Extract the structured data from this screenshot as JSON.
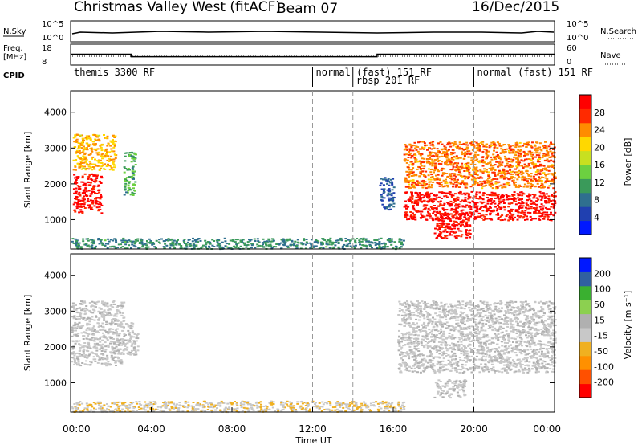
{
  "header": {
    "title": "Christmas Valley West (fitACF)",
    "beam": "Beam 07",
    "date": "16/Dec/2015"
  },
  "top_panels": {
    "nsky_label": "N.Sky",
    "nsearch_label": "N.Search",
    "nsky_ticks": [
      "10^5",
      "10^0"
    ],
    "nsearch_ticks": [
      "10^5",
      "10^0"
    ],
    "freq_label_line1": "Freq.",
    "freq_label_line2": "[MHz]",
    "freq_ticks": [
      "18",
      "8"
    ],
    "nave_label": "Nave",
    "nave_ticks": [
      "60",
      "0"
    ],
    "cpid_label": "CPID",
    "freq_steps": [
      {
        "from_hour": 0,
        "to_hour": 3,
        "mhz": 13.2
      },
      {
        "from_hour": 3,
        "to_hour": 15.2,
        "mhz": 11.9
      },
      {
        "from_hour": 15.2,
        "to_hour": 24,
        "mhz": 13.2
      }
    ],
    "cpid_segments": [
      {
        "start_hour": 0,
        "text": "themis 3300 RF"
      },
      {
        "start_hour": 12,
        "text": "normal (fast) 151 RF"
      },
      {
        "start_hour": 14,
        "text": "rbsp 201 RF"
      },
      {
        "start_hour": 20,
        "text": "normal (fast) 151 RF"
      }
    ]
  },
  "chart_data": [
    {
      "type": "heatmap",
      "title": "Power",
      "xlabel": "Time UT",
      "ylabel": "Slant Range [km]",
      "xlim_hours": [
        0,
        24
      ],
      "ylim": [
        180,
        4600
      ],
      "x_ticks": [
        "00:00",
        "04:00",
        "08:00",
        "12:00",
        "16:00",
        "20:00",
        "00:00"
      ],
      "y_ticks": [
        1000,
        2000,
        3000,
        4000
      ],
      "colorbar_label": "Power [dB]",
      "colorbar_ticks": [
        "28",
        "24",
        "20",
        "16",
        "12",
        "8",
        "4"
      ],
      "colorbar_range": [
        0,
        32
      ],
      "colors": [
        "#0018ff",
        "#2040b0",
        "#2f6f8f",
        "#3a9a5a",
        "#6cd040",
        "#c8e020",
        "#ffd800",
        "#ff8c00",
        "#ff2a00",
        "#ff0000"
      ],
      "dashed_hours": [
        12,
        14,
        20
      ],
      "echo_regions": [
        {
          "t": [
            0.1,
            1.5
          ],
          "r": [
            1200,
            2300
          ],
          "value": 30
        },
        {
          "t": [
            0.1,
            2.2
          ],
          "r": [
            2400,
            3400
          ],
          "value": 22
        },
        {
          "t": [
            2.6,
            3.2
          ],
          "r": [
            1700,
            2900
          ],
          "value": 12
        },
        {
          "t": [
            0.0,
            16.5
          ],
          "r": [
            200,
            500
          ],
          "value": 10
        },
        {
          "t": [
            15.3,
            16.0
          ],
          "r": [
            1300,
            2200
          ],
          "value": 6
        },
        {
          "t": [
            16.5,
            24.0
          ],
          "r": [
            1000,
            1800
          ],
          "value": 30
        },
        {
          "t": [
            16.5,
            24.0
          ],
          "r": [
            1900,
            3200
          ],
          "value": 25
        },
        {
          "t": [
            18.0,
            19.8
          ],
          "r": [
            500,
            1200
          ],
          "value": 30
        }
      ]
    },
    {
      "type": "heatmap",
      "title": "Velocity",
      "xlabel": "Time UT",
      "ylabel": "Slant Range [km]",
      "xlim_hours": [
        0,
        24
      ],
      "ylim": [
        180,
        4600
      ],
      "x_ticks": [
        "00:00",
        "04:00",
        "08:00",
        "12:00",
        "16:00",
        "20:00",
        "00:00"
      ],
      "y_ticks": [
        1000,
        2000,
        3000,
        4000
      ],
      "colorbar_label": "Velocity [m s⁻¹]",
      "colorbar_ticks": [
        "200",
        "100",
        "50",
        "15",
        "-15",
        "-50",
        "-100",
        "-200"
      ],
      "colorbar_range": [
        -250,
        250
      ],
      "colors": [
        "#ff0000",
        "#ff5000",
        "#ff9000",
        "#f0b020",
        "#c8c8c8",
        "#b0b0b0",
        "#8cd050",
        "#3ab030",
        "#3060a0",
        "#0018ff"
      ],
      "ground_scatter_color": "#c8c8c8",
      "dashed_hours": [
        12,
        14,
        20
      ],
      "echo_regions": [
        {
          "t": [
            0.0,
            2.6
          ],
          "r": [
            1500,
            3300
          ],
          "value": 0
        },
        {
          "t": [
            2.6,
            3.3
          ],
          "r": [
            1800,
            2700
          ],
          "value": 0
        },
        {
          "t": [
            0.0,
            16.5
          ],
          "r": [
            200,
            500
          ],
          "value": -40
        },
        {
          "t": [
            16.2,
            24.0
          ],
          "r": [
            1300,
            3300
          ],
          "value": 0
        },
        {
          "t": [
            18.0,
            19.6
          ],
          "r": [
            600,
            1100
          ],
          "value": 0
        }
      ]
    }
  ]
}
